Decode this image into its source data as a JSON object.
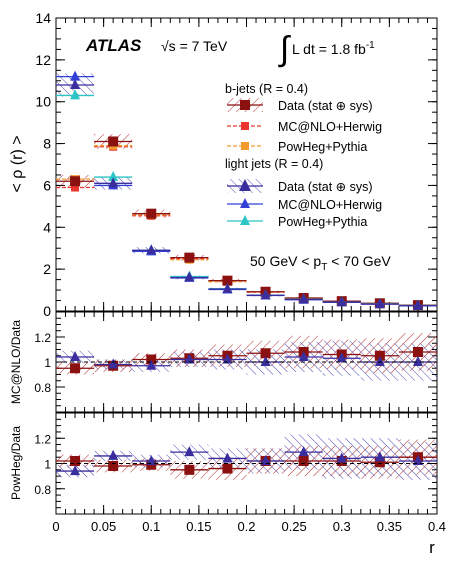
{
  "chart_data": {
    "type": "scatter",
    "x": [
      0.02,
      0.06,
      0.1,
      0.14,
      0.18,
      0.22,
      0.26,
      0.3,
      0.34,
      0.38
    ],
    "x_bin_width": 0.04,
    "xlabel": "r",
    "xlim": [
      0,
      0.4
    ],
    "x_ticks": [
      "0",
      "0.05",
      "0.1",
      "0.15",
      "0.2",
      "0.25",
      "0.3",
      "0.35",
      "0.4"
    ],
    "x_tick_values": [
      0,
      0.05,
      0.1,
      0.15,
      0.2,
      0.25,
      0.3,
      0.35,
      0.4
    ],
    "grid": false,
    "annotations": {
      "atlas": "ATLAS",
      "energy": "√s = 7 TeV",
      "lumi_sign": "∫",
      "lumi": "L dt = 1.8 fb",
      "lumi_sup": "-1",
      "pt_range": "50 GeV < p",
      "pt_sub": "T",
      "pt_range_end": " < 70 GeV"
    },
    "legend": {
      "position": "top-right",
      "bjets_header": "b-jets (R = 0.4)",
      "light_header": "light jets (R = 0.4)",
      "entries": {
        "b_data": "Data (stat ⊕ sys)",
        "b_mc": "MC@NLO+Herwig",
        "b_pow": "PowHeg+Pythia",
        "l_data": "Data (stat ⊕ sys)",
        "l_mc": "MC@NLO+Herwig",
        "l_pow": "PowHeg+Pythia"
      }
    },
    "main_panel": {
      "ylabel": "< ρ (r) >",
      "ylim": [
        0,
        14
      ],
      "y_ticks": [
        0,
        2,
        4,
        6,
        8,
        10,
        12,
        14
      ],
      "series": {
        "b_data": [
          6.2,
          8.1,
          4.65,
          2.55,
          1.45,
          0.92,
          0.62,
          0.47,
          0.37,
          0.28
        ],
        "b_mc": [
          5.9,
          7.85,
          4.55,
          2.5,
          1.42,
          0.9,
          0.6,
          0.46,
          0.36,
          0.27
        ],
        "b_pow": [
          6.3,
          7.9,
          4.6,
          2.45,
          1.4,
          0.9,
          0.6,
          0.46,
          0.36,
          0.27
        ],
        "l_data": [
          10.8,
          6.1,
          2.9,
          1.6,
          1.05,
          0.75,
          0.55,
          0.42,
          0.33,
          0.25
        ],
        "l_mc": [
          11.2,
          6.0,
          2.85,
          1.58,
          1.03,
          0.74,
          0.54,
          0.42,
          0.33,
          0.25
        ],
        "l_pow": [
          10.3,
          6.4,
          2.9,
          1.65,
          1.06,
          0.76,
          0.56,
          0.43,
          0.34,
          0.26
        ]
      },
      "b_band_halfwidth": [
        0.3,
        0.35,
        0.2,
        0.13,
        0.08,
        0.05,
        0.04,
        0.03,
        0.03,
        0.02
      ],
      "l_band_halfwidth": [
        0.55,
        0.3,
        0.15,
        0.09,
        0.06,
        0.05,
        0.04,
        0.03,
        0.03,
        0.02
      ]
    },
    "mc_ratio_panel": {
      "ylabel": "MC@NLO/Data",
      "ylim": [
        0.6,
        1.4
      ],
      "y_ticks": [
        0.8,
        1,
        1.2
      ],
      "b_values": [
        0.95,
        0.97,
        1.02,
        1.03,
        1.05,
        1.07,
        1.08,
        1.06,
        1.05,
        1.08
      ],
      "l_values": [
        1.04,
        0.98,
        0.97,
        1.02,
        1.02,
        1.0,
        1.04,
        1.03,
        1.0,
        1.0
      ],
      "b_band_halfwidth": [
        0.05,
        0.05,
        0.05,
        0.07,
        0.09,
        0.1,
        0.13,
        0.12,
        0.14,
        0.15
      ],
      "l_band_halfwidth": [
        0.05,
        0.04,
        0.05,
        0.06,
        0.08,
        0.1,
        0.12,
        0.14,
        0.15,
        0.15
      ]
    },
    "pow_ratio_panel": {
      "ylabel": "PowHeg/Data",
      "ylim": [
        0.6,
        1.4
      ],
      "y_ticks": [
        0.8,
        1,
        1.2
      ],
      "b_values": [
        1.02,
        0.98,
        0.99,
        0.95,
        0.96,
        1.02,
        1.02,
        1.02,
        1.01,
        1.05
      ],
      "l_values": [
        0.94,
        1.06,
        1.02,
        1.09,
        1.04,
        1.02,
        1.09,
        1.04,
        1.05,
        1.02
      ],
      "b_band_halfwidth": [
        0.05,
        0.05,
        0.05,
        0.07,
        0.09,
        0.1,
        0.12,
        0.12,
        0.13,
        0.14
      ],
      "l_band_halfwidth": [
        0.05,
        0.04,
        0.05,
        0.06,
        0.08,
        0.1,
        0.14,
        0.16,
        0.15,
        0.15
      ]
    },
    "colors": {
      "b_data": "#8b1010",
      "b_mc": "#e8362d",
      "b_pow": "#f39a2e",
      "l_data": "#3a2e9e",
      "l_mc": "#3340d8",
      "l_pow": "#2cc4c4",
      "b_band": "#b22a2a",
      "l_band": "#4a4ab8"
    }
  }
}
